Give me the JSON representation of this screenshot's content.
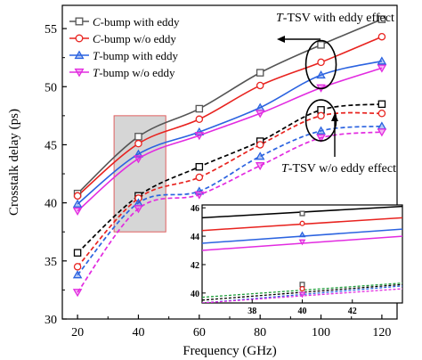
{
  "chart_data": {
    "type": "line",
    "xlabel": "Frequency (GHz)",
    "ylabel": "Crosstalk delay (ps)",
    "xlim": [
      15,
      125
    ],
    "ylim": [
      30,
      57
    ],
    "xticks": [
      "20",
      "40",
      "60",
      "80",
      "100",
      "120"
    ],
    "yticks": [
      "30",
      "35",
      "40",
      "45",
      "50",
      "55"
    ],
    "legend": {
      "position": "top-left"
    },
    "x": [
      20,
      40,
      60,
      80,
      100,
      120
    ],
    "series": [
      {
        "name": "C-bump with eddy",
        "color": "#555555",
        "marker": "square",
        "group": "with-eddy",
        "values": [
          40.8,
          45.7,
          48.1,
          51.2,
          53.6,
          55.8
        ]
      },
      {
        "name": "C-bump w/o eddy",
        "color": "#e8231f",
        "marker": "circle",
        "group": "with-eddy",
        "values": [
          40.6,
          45.1,
          47.2,
          50.1,
          52.1,
          54.3
        ]
      },
      {
        "name": "T-bump with eddy",
        "color": "#2b63e0",
        "marker": "triangle-up",
        "group": "with-eddy",
        "values": [
          39.9,
          44.2,
          46.1,
          48.2,
          51.0,
          52.2
        ]
      },
      {
        "name": "T-bump w/o eddy",
        "color": "#e22be0",
        "marker": "triangle-down",
        "group": "with-eddy",
        "values": [
          39.3,
          43.8,
          45.8,
          47.7,
          49.9,
          51.6
        ]
      },
      {
        "color": "#000000",
        "marker": "square",
        "group": "without-eddy",
        "values": [
          35.7,
          40.6,
          43.1,
          45.3,
          48.0,
          48.5
        ]
      },
      {
        "color": "#e8231f",
        "marker": "circle",
        "group": "without-eddy",
        "values": [
          34.5,
          40.4,
          42.2,
          45.0,
          47.5,
          47.7
        ]
      },
      {
        "color": "#2b63e0",
        "marker": "triangle-up",
        "group": "without-eddy",
        "values": [
          33.8,
          40.0,
          41.0,
          44.0,
          46.2,
          46.6
        ]
      },
      {
        "color": "#e22be0",
        "marker": "triangle-down",
        "group": "without-eddy",
        "values": [
          32.3,
          39.5,
          40.7,
          43.2,
          45.6,
          46.1
        ]
      }
    ],
    "annotations": {
      "with_eddy_label_prefix": "T",
      "with_eddy_label_rest": "-TSV with eddy effect",
      "without_eddy_label_prefix": "T",
      "without_eddy_label_rest": "-TSV w/o eddy effect"
    },
    "highlight_region": {
      "x": [
        32,
        49
      ],
      "y": [
        37.5,
        47.5
      ]
    },
    "inset": {
      "xlim": [
        36,
        44
      ],
      "ylim": [
        39.3,
        46.2
      ],
      "xticks": [
        "38",
        "40",
        "42"
      ],
      "yticks": [
        "40",
        "42",
        "44",
        "46"
      ],
      "lines": [
        {
          "color": "#000000",
          "y": [
            45.3,
            46.1
          ]
        },
        {
          "color": "#e8231f",
          "y": [
            44.4,
            45.3
          ]
        },
        {
          "color": "#2b63e0",
          "y": [
            43.5,
            44.5
          ]
        },
        {
          "color": "#e22be0",
          "y": [
            43.0,
            44.0
          ]
        },
        {
          "color": "#1e9e3a",
          "y": [
            39.7,
            40.7
          ],
          "dashed": true
        },
        {
          "color": "#000000",
          "y": [
            39.5,
            40.6
          ],
          "dashed": true
        },
        {
          "color": "#2b63e0",
          "y": [
            39.3,
            40.5
          ],
          "dashed": true
        },
        {
          "color": "#e22be0",
          "y": [
            39.3,
            40.3
          ],
          "dashed": true
        }
      ],
      "markers": [
        {
          "marker": "square",
          "color": "#555555",
          "y": 45.6
        },
        {
          "marker": "circle",
          "color": "#e8231f",
          "y": 44.9
        },
        {
          "marker": "triangle-up",
          "color": "#2b63e0",
          "y": 44.1
        },
        {
          "marker": "triangle-down",
          "color": "#e22be0",
          "y": 43.6
        },
        {
          "marker": "square",
          "color": "#555555",
          "y": 40.6
        },
        {
          "marker": "circle",
          "color": "#e8231f",
          "y": 40.3
        },
        {
          "marker": "triangle-down",
          "color": "#e22be0",
          "y": 39.9
        }
      ]
    }
  }
}
